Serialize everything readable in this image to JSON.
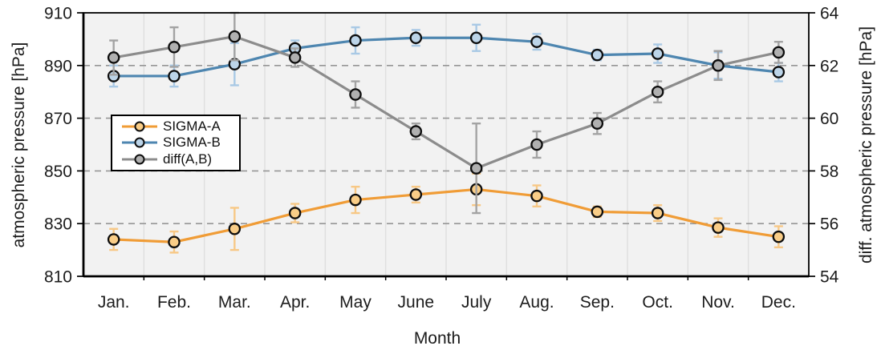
{
  "chart_data": {
    "type": "line",
    "title": "",
    "xlabel": "Month",
    "categories": [
      "Jan.",
      "Feb.",
      "Mar.",
      "Apr.",
      "May",
      "June",
      "July",
      "Aug.",
      "Sep.",
      "Oct.",
      "Nov.",
      "Dec."
    ],
    "left_axis": {
      "label": "atmospheric pressure [hPa]",
      "min": 810,
      "max": 910,
      "ticks": [
        810,
        830,
        850,
        870,
        890,
        910
      ]
    },
    "right_axis": {
      "label": "diff. atmospheric pressure [hPa]",
      "min": 54,
      "max": 64,
      "ticks": [
        54,
        56,
        58,
        60,
        62,
        64
      ]
    },
    "grid": {
      "horizontal_dashed_left_values": [
        830,
        850,
        870,
        890
      ],
      "vertical_at_month_boundaries": true
    },
    "legend": {
      "position": "upper-left-inside",
      "entries": [
        "SIGMA-A",
        "SIGMA-B",
        "diff(A,B)"
      ]
    },
    "series": [
      {
        "name": "SIGMA-A",
        "axis": "left",
        "line_color": "#F09C36",
        "marker_fill": "#F9CD87",
        "error_color": "#F7C886",
        "values": [
          824,
          823,
          828,
          834,
          839,
          841,
          843,
          840.5,
          834.5,
          834,
          828.5,
          825
        ],
        "errors": [
          4,
          4,
          8,
          3.5,
          5,
          3,
          6,
          4,
          2,
          3,
          3.5,
          4
        ]
      },
      {
        "name": "SIGMA-B",
        "axis": "left",
        "line_color": "#4E86B0",
        "marker_fill": "#BCD4E8",
        "error_color": "#A9C9E5",
        "values": [
          886,
          886,
          890.5,
          896.5,
          899.5,
          900.5,
          900.5,
          899,
          894,
          894.5,
          890,
          887.5
        ],
        "errors": [
          4,
          4,
          8,
          3,
          5,
          3,
          5,
          3,
          2,
          3.5,
          5,
          3.5
        ]
      },
      {
        "name": "diff(A,B)",
        "axis": "right",
        "line_color": "#8C8C8C",
        "marker_fill": "#B0B0B0",
        "error_color": "#A3A3A3",
        "values": [
          62.3,
          62.7,
          63.1,
          62.3,
          60.9,
          59.5,
          58.1,
          59.0,
          59.8,
          61.0,
          62.0,
          62.5
        ],
        "errors": [
          0.65,
          0.75,
          0.9,
          0.35,
          0.5,
          0.3,
          1.7,
          0.5,
          0.4,
          0.4,
          0.55,
          0.4
        ]
      }
    ],
    "colors": {
      "plot_background": "#F2F2F2",
      "vertical_gridline": "#DFDFDF",
      "dashed_gridline": "#969696",
      "frame": "#000000",
      "text": "#1c1c1c"
    }
  }
}
